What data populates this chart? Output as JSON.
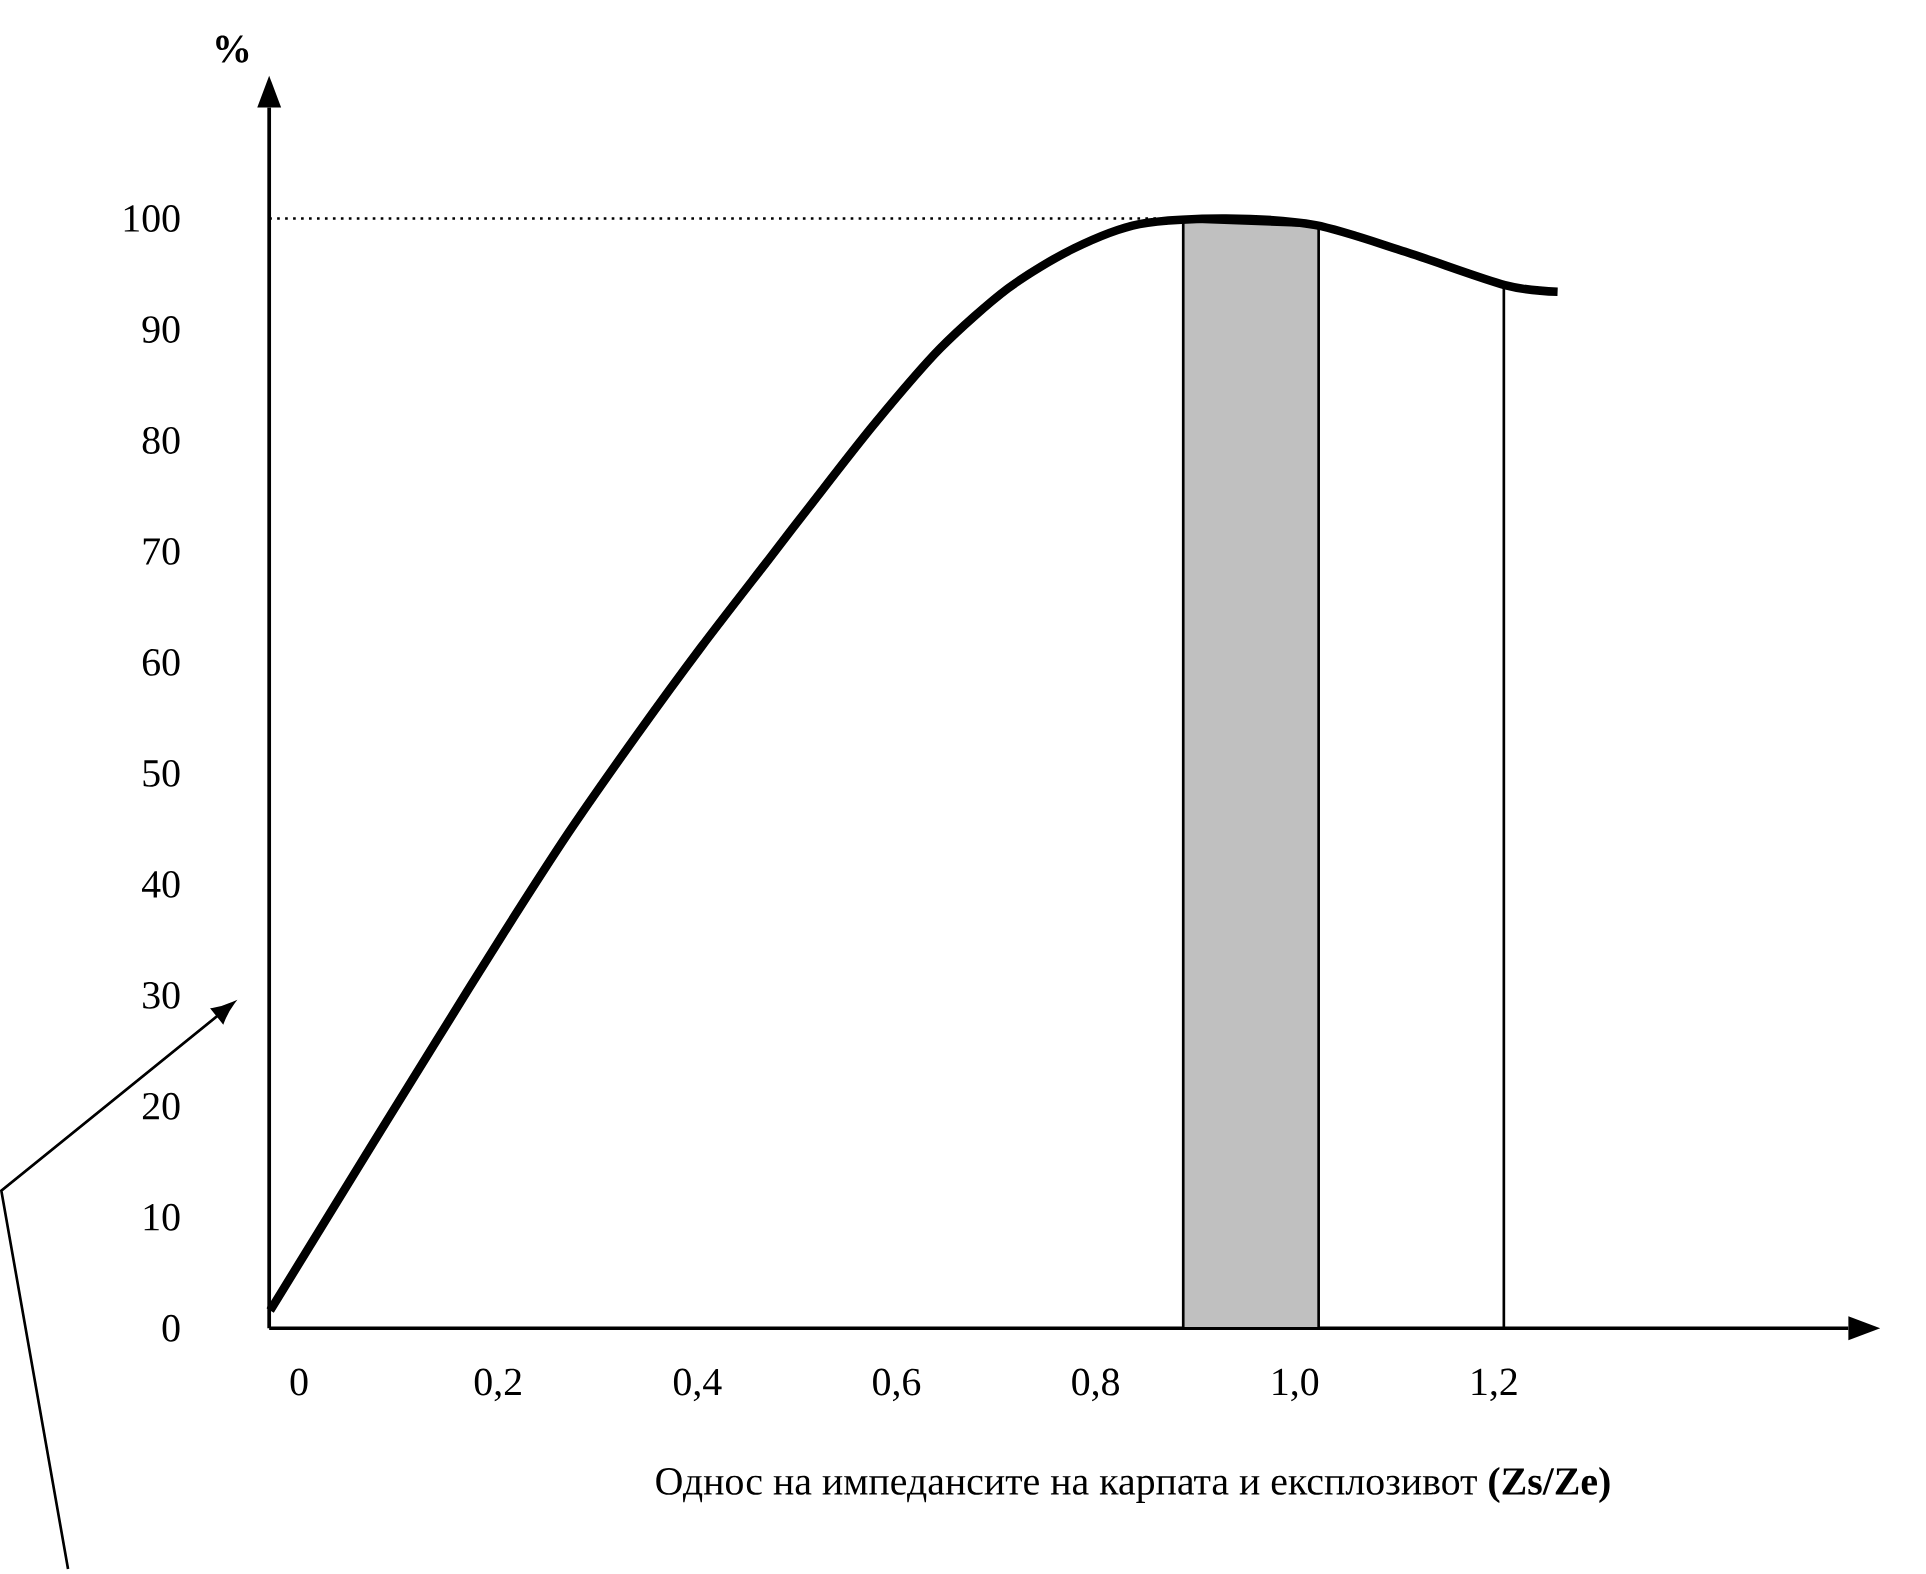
{
  "chart_data": {
    "type": "line",
    "xlabel": "Однос на импедансите на карпата и експлозивот  **(Zs/Ze)**",
    "ylabel": "**%**",
    "x": [
      -0.029,
      0.071,
      0.138,
      0.204,
      0.271,
      0.338,
      0.404,
      0.471,
      0.514,
      0.578,
      0.644,
      0.712,
      0.778,
      0.844,
      0.931,
      1.021,
      1.111,
      1.211,
      1.264
    ],
    "series": [
      {
        "color": "#000000",
        "values": [
          1.6,
          16.2,
          25.9,
          35.4,
          44.7,
          53.3,
          61.4,
          69.2,
          74.2,
          81.5,
          88.3,
          93.7,
          97.3,
          99.5,
          100,
          99.4,
          97.0,
          94.0,
          93.4
        ]
      }
    ],
    "xlim": [
      -0.03,
      1.556
    ],
    "ylim": [
      0,
      110
    ],
    "xticks": [
      {
        "value": 0,
        "label": "0"
      },
      {
        "value": 0.2,
        "label": "0,2"
      },
      {
        "value": 0.4,
        "label": "0,4"
      },
      {
        "value": 0.6,
        "label": "0,6"
      },
      {
        "value": 0.8,
        "label": "0,8"
      },
      {
        "value": 1.0,
        "label": "1,0"
      },
      {
        "value": 1.2,
        "label": "1,2"
      }
    ],
    "yticks": [
      0,
      10,
      20,
      30,
      40,
      50,
      60,
      70,
      80,
      90,
      100
    ],
    "ref_lines": [
      {
        "axis": "y",
        "value": 100,
        "line_style": "dotted"
      },
      {
        "axis": "x",
        "value": 1.21,
        "line_style": "solid"
      }
    ],
    "bands": [
      {
        "axis": "x",
        "from": 0.888,
        "to": 1.024,
        "color": "#c0c0c0"
      }
    ],
    "line_style": "solid",
    "marker": "none"
  }
}
